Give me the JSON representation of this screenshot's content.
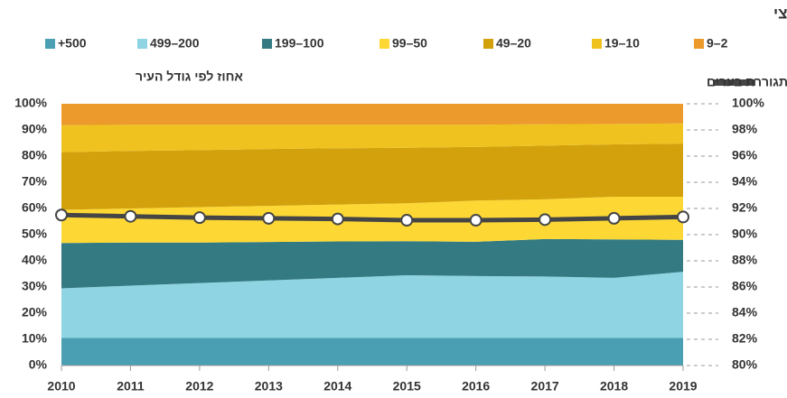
{
  "chart_data": {
    "type": "stacked_area_line",
    "title": "א. ארצי",
    "y_label": "אחוז לפי גודל העיר",
    "x": [
      2010,
      2011,
      2012,
      2013,
      2014,
      2015,
      2016,
      2017,
      2018,
      2019
    ],
    "ylim": [
      0,
      100
    ],
    "yticks": [
      {
        "value": 0,
        "label": "0%"
      },
      {
        "value": 10,
        "label": "10%"
      },
      {
        "value": 20,
        "label": "20%"
      },
      {
        "value": 30,
        "label": "30%"
      },
      {
        "value": 40,
        "label": "40%"
      },
      {
        "value": 50,
        "label": "50%"
      },
      {
        "value": 60,
        "label": "60%"
      },
      {
        "value": 70,
        "label": "70%"
      },
      {
        "value": 80,
        "label": "80%"
      },
      {
        "value": 90,
        "label": "90%"
      },
      {
        "value": 100,
        "label": "100%"
      }
    ],
    "y2lim": [
      80,
      100
    ],
    "y2ticks": [
      {
        "value": 80,
        "label": "80%"
      },
      {
        "value": 82,
        "label": "82%"
      },
      {
        "value": 84,
        "label": "84%"
      },
      {
        "value": 86,
        "label": "86%"
      },
      {
        "value": 88,
        "label": "88%"
      },
      {
        "value": 90,
        "label": "90%"
      },
      {
        "value": 92,
        "label": "92%"
      },
      {
        "value": 94,
        "label": "94%"
      },
      {
        "value": 96,
        "label": "96%"
      },
      {
        "value": 98,
        "label": "98%"
      },
      {
        "value": 100,
        "label": "100%"
      }
    ],
    "series": [
      {
        "name": "+500",
        "color": "#4aa0b2",
        "values": [
          10.5,
          10.5,
          10.5,
          10.5,
          10.5,
          10.5,
          10.5,
          10.5,
          10.5,
          10.5
        ]
      },
      {
        "name": "499–200",
        "color": "#8fd4e2",
        "values": [
          19,
          20,
          21,
          22,
          23,
          24,
          23.7,
          23.5,
          23,
          25.3
        ]
      },
      {
        "name": "199–100",
        "color": "#347a83",
        "values": [
          17.3,
          16.5,
          15.5,
          14.7,
          13.9,
          13,
          13.1,
          14.3,
          14.7,
          12.2
        ]
      },
      {
        "name": "99–50",
        "color": "#fdd835",
        "values": [
          12.7,
          13,
          13.5,
          13.8,
          14.1,
          14.5,
          15.7,
          15.2,
          16.3,
          16.5
        ]
      },
      {
        "name": "49–20",
        "color": "#d2a10c",
        "values": [
          22,
          22,
          21.8,
          21.7,
          21.5,
          21.2,
          20.5,
          20.5,
          20,
          20.3
        ]
      },
      {
        "name": "19–10",
        "color": "#efc21f",
        "values": [
          10.3,
          10,
          9.7,
          9.3,
          9,
          8.8,
          8.5,
          8.2,
          7.8,
          7.7
        ]
      },
      {
        "name": "9–2",
        "color": "#ec9a2b",
        "values": [
          8.2,
          8,
          8,
          8,
          8,
          8,
          8,
          7.8,
          7.7,
          7.5
        ]
      },
      {
        "name": "אחוז האוכלוסייה המתגוררת בערים",
        "color": "#454545",
        "axis": "y2",
        "values": [
          91.5,
          91.4,
          91.3,
          91.25,
          91.2,
          91.1,
          91.1,
          91.15,
          91.25,
          91.35
        ]
      }
    ]
  }
}
